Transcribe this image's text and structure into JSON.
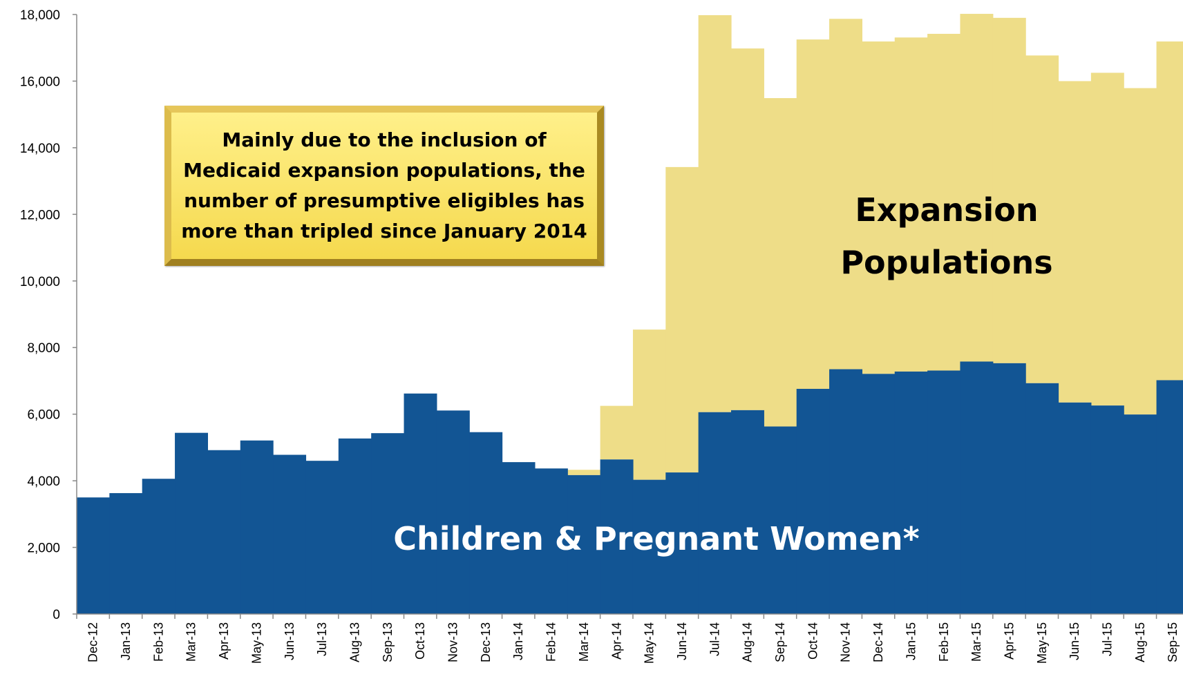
{
  "chart_data": {
    "type": "area",
    "stacked": true,
    "title": "",
    "xlabel": "",
    "ylabel": "",
    "ylim": [
      0,
      18000
    ],
    "yticks": [
      0,
      2000,
      4000,
      6000,
      8000,
      10000,
      12000,
      14000,
      16000,
      18000
    ],
    "ytick_labels": [
      "0",
      "2,000",
      "4,000",
      "6,000",
      "8,000",
      "10,000",
      "12,000",
      "14,000",
      "16,000",
      "18,000"
    ],
    "categories": [
      "Dec-12",
      "Jan-13",
      "Feb-13",
      "Mar-13",
      "Apr-13",
      "May-13",
      "Jun-13",
      "Jul-13",
      "Aug-13",
      "Sep-13",
      "Oct-13",
      "Nov-13",
      "Dec-13",
      "Jan-14",
      "Feb-14",
      "Mar-14",
      "Apr-14",
      "May-14",
      "Jun-14",
      "Jul-14",
      "Aug-14",
      "Sep-14",
      "Oct-14",
      "Nov-14",
      "Dec-14",
      "Jan-15",
      "Feb-15",
      "Mar-15",
      "Apr-15",
      "May-15",
      "Jun-15",
      "Jul-15",
      "Aug-15",
      "Sep-15"
    ],
    "series": [
      {
        "name": "Children & Pregnant Women*",
        "color": "#125594",
        "values": [
          3500,
          3630,
          4060,
          5440,
          4920,
          5210,
          4780,
          4600,
          5270,
          5430,
          6620,
          6110,
          5460,
          4560,
          4370,
          4170,
          4640,
          4030,
          4250,
          6060,
          6120,
          5630,
          6760,
          7350,
          7210,
          7280,
          7310,
          7580,
          7530,
          6930,
          6350,
          6260,
          5990,
          7020
        ]
      },
      {
        "name": "Expansion Populations",
        "color": "#eedd88",
        "values": [
          0,
          0,
          0,
          0,
          0,
          0,
          0,
          0,
          0,
          0,
          0,
          0,
          0,
          0,
          0,
          160,
          1610,
          4510,
          9170,
          11920,
          10860,
          9860,
          10490,
          10520,
          9980,
          10030,
          10110,
          10440,
          10370,
          9840,
          9650,
          9990,
          9800,
          10170
        ]
      }
    ],
    "grid": false,
    "legend": "none",
    "series_labels": {
      "blue": "Children & Pregnant Women*",
      "yellow_line1": "Expansion",
      "yellow_line2": "Populations"
    },
    "annotation": {
      "lines": [
        "Mainly due to the inclusion of",
        "Medicaid expansion populations, the",
        "number of presumptive eligibles has",
        "more than tripled since January 2014"
      ]
    }
  }
}
